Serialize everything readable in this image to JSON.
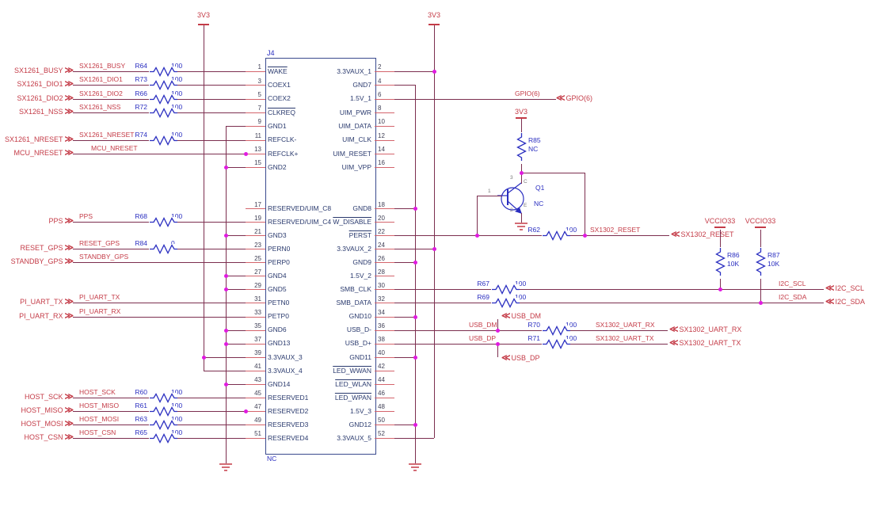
{
  "connector": {
    "designator": "J4",
    "note": "NC",
    "left_top": [
      {
        "num": "1",
        "name": "WAKE",
        "bar": 1
      },
      {
        "num": "3",
        "name": "COEX1"
      },
      {
        "num": "5",
        "name": "COEX2"
      },
      {
        "num": "7",
        "name": "CLKREQ",
        "bar": 1
      },
      {
        "num": "9",
        "name": "GND1"
      },
      {
        "num": "11",
        "name": "REFCLK-"
      },
      {
        "num": "13",
        "name": "REFCLK+"
      },
      {
        "num": "15",
        "name": "GND2"
      }
    ],
    "left_bottom": [
      {
        "num": "17",
        "name": "RESERVED/UIM_C8"
      },
      {
        "num": "19",
        "name": "RESERVED/UIM_C4"
      },
      {
        "num": "21",
        "name": "GND3"
      },
      {
        "num": "23",
        "name": "PERN0"
      },
      {
        "num": "25",
        "name": "PERP0"
      },
      {
        "num": "27",
        "name": "GND4"
      },
      {
        "num": "29",
        "name": "GND5"
      },
      {
        "num": "31",
        "name": "PETN0"
      },
      {
        "num": "33",
        "name": "PETP0"
      },
      {
        "num": "35",
        "name": "GND6"
      },
      {
        "num": "37",
        "name": "GND13"
      },
      {
        "num": "39",
        "name": "3.3VAUX_3"
      },
      {
        "num": "41",
        "name": "3.3VAUX_4"
      },
      {
        "num": "43",
        "name": "GND14"
      },
      {
        "num": "45",
        "name": "RESERVED1"
      },
      {
        "num": "47",
        "name": "RESERVED2"
      },
      {
        "num": "49",
        "name": "RESERVED3"
      },
      {
        "num": "51",
        "name": "RESERVED4"
      }
    ],
    "right_top": [
      {
        "num": "2",
        "name": "3.3VAUX_1"
      },
      {
        "num": "4",
        "name": "GND7"
      },
      {
        "num": "6",
        "name": "1.5V_1"
      },
      {
        "num": "8",
        "name": "UIM_PWR"
      },
      {
        "num": "10",
        "name": "UIM_DATA"
      },
      {
        "num": "12",
        "name": "UIM_CLK"
      },
      {
        "num": "14",
        "name": "UIM_RESET"
      },
      {
        "num": "16",
        "name": "UIM_VPP"
      }
    ],
    "right_bottom": [
      {
        "num": "18",
        "name": "GND8"
      },
      {
        "num": "20",
        "name": "W_DISABLE",
        "bar": 1
      },
      {
        "num": "22",
        "name": "PERST",
        "bar": 1
      },
      {
        "num": "24",
        "name": "3.3VAUX_2"
      },
      {
        "num": "26",
        "name": "GND9"
      },
      {
        "num": "28",
        "name": "1.5V_2"
      },
      {
        "num": "30",
        "name": "SMB_CLK"
      },
      {
        "num": "32",
        "name": "SMB_DATA"
      },
      {
        "num": "34",
        "name": "GND10"
      },
      {
        "num": "36",
        "name": "USB_D-"
      },
      {
        "num": "38",
        "name": "USB_D+"
      },
      {
        "num": "40",
        "name": "GND11"
      },
      {
        "num": "42",
        "name": "LED_WWAN",
        "bar": 1
      },
      {
        "num": "44",
        "name": "LED_WLAN",
        "bar": 1
      },
      {
        "num": "46",
        "name": "LED_WPAN",
        "bar": 1
      },
      {
        "num": "48",
        "name": "1.5V_3"
      },
      {
        "num": "50",
        "name": "GND12"
      },
      {
        "num": "52",
        "name": "3.3VAUX_5"
      }
    ]
  },
  "left_ports": [
    {
      "name": "SX1261_BUSY",
      "net": "SX1261_BUSY",
      "res": "R64",
      "val": "100"
    },
    {
      "name": "SX1261_DIO1",
      "net": "SX1261_DIO1",
      "res": "R73",
      "val": "100"
    },
    {
      "name": "SX1261_DIO2",
      "net": "SX1261_DIO2",
      "res": "R66",
      "val": "100"
    },
    {
      "name": "SX1261_NSS",
      "net": "SX1261_NSS",
      "res": "R72",
      "val": "100"
    },
    {
      "name": "SX1261_NRESET",
      "net": "SX1261_NRESET",
      "res": "R74",
      "val": "100"
    },
    {
      "name": "MCU_NRESET",
      "net": "MCU_NRESET"
    },
    {
      "name": "PPS",
      "net": "PPS",
      "res": "R68",
      "val": "100"
    },
    {
      "name": "RESET_GPS",
      "net": "RESET_GPS",
      "res": "R84",
      "val": "0"
    },
    {
      "name": "STANDBY_GPS",
      "net": "STANDBY_GPS"
    },
    {
      "name": "PI_UART_TX",
      "net": "PI_UART_TX"
    },
    {
      "name": "PI_UART_RX",
      "net": "PI_UART_RX"
    },
    {
      "name": "HOST_SCK",
      "net": "HOST_SCK",
      "res": "R60",
      "val": "100"
    },
    {
      "name": "HOST_MISO",
      "net": "HOST_MISO",
      "res": "R61",
      "val": "100"
    },
    {
      "name": "HOST_MOSI",
      "net": "HOST_MOSI",
      "res": "R63",
      "val": "100"
    },
    {
      "name": "HOST_CSN",
      "net": "HOST_CSN",
      "res": "R65",
      "val": "100"
    }
  ],
  "right_labels": {
    "gpio": {
      "net": "GPIO(6)",
      "port": "GPIO(6)"
    },
    "reset": {
      "net": "SX1302_RESET",
      "port": "SX1302_RESET",
      "res": "R62",
      "val": "100"
    },
    "scl": {
      "net": "I2C_SCL",
      "port": "I2C_SCL",
      "res": "R67",
      "val": "100"
    },
    "sda": {
      "net": "I2C_SDA",
      "port": "I2C_SDA",
      "res": "R69",
      "val": "100"
    },
    "usb_dm": {
      "net": "USB_DM",
      "port": "USB_DM"
    },
    "usb_dp": {
      "net": "USB_DP",
      "port": "USB_DP"
    },
    "uart_rx": {
      "net": "SX1302_UART_RX",
      "port": "SX1302_UART_RX",
      "res": "R70",
      "val": "100"
    },
    "uart_tx": {
      "net": "SX1302_UART_TX",
      "port": "SX1302_UART_TX",
      "res": "R71",
      "val": "100"
    }
  },
  "pullups": {
    "r85": {
      "ref": "R85",
      "val": "NC"
    },
    "r86": {
      "ref": "R86",
      "val": "10K"
    },
    "r87": {
      "ref": "R87",
      "val": "10K"
    }
  },
  "transistor": {
    "ref": "Q1",
    "note": "NC",
    "p1": "1",
    "p2": "2",
    "p3": "3",
    "c": "C",
    "e": "E"
  },
  "power": {
    "v33_left": "3V3",
    "v33_right": "3V3",
    "v33_q": "3V3",
    "vccio_a": "VCCIO33",
    "vccio_b": "VCCIO33"
  },
  "colors": {
    "wire": "#7c2e4f",
    "pin": "#d4646c",
    "net_label": "#c43b47",
    "symbol_blue": "#2a2ec0",
    "pin_name": "#2a3a6e",
    "junction": "#e01ae0"
  }
}
